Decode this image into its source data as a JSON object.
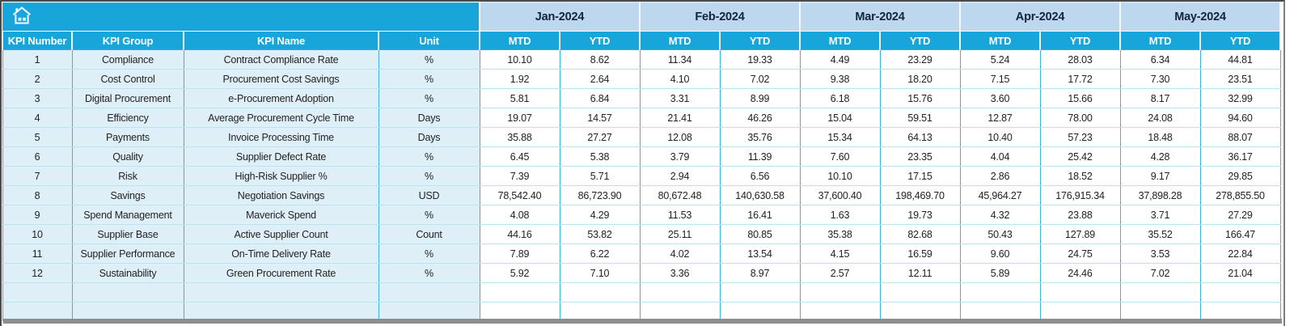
{
  "header": {
    "row_headers": [
      "KPI Number",
      "KPI Group",
      "KPI Name",
      "Unit"
    ],
    "months": [
      "Jan-2024",
      "Feb-2024",
      "Mar-2024",
      "Apr-2024",
      "May-2024"
    ],
    "sub_headers": [
      "MTD",
      "YTD"
    ],
    "home_icon": "home-icon"
  },
  "colors": {
    "header_teal": "#18a6da",
    "month_band_blue": "#bdd7ee",
    "row_tint_blue": "#dfeff8",
    "grid_vertical": "#3ab3d8",
    "grid_horizontal": "#b9e5f3",
    "frame_gray": "#8e8e8e"
  },
  "rows": [
    {
      "number": "1",
      "group": "Compliance",
      "name": "Contract Compliance Rate",
      "unit": "%",
      "values": [
        "10.10",
        "8.62",
        "11.34",
        "19.33",
        "4.49",
        "23.29",
        "5.24",
        "28.03",
        "6.34",
        "44.81"
      ]
    },
    {
      "number": "2",
      "group": "Cost Control",
      "name": "Procurement Cost Savings",
      "unit": "%",
      "values": [
        "1.92",
        "2.64",
        "4.10",
        "7.02",
        "9.38",
        "18.20",
        "7.15",
        "17.72",
        "7.30",
        "23.51"
      ]
    },
    {
      "number": "3",
      "group": "Digital Procurement",
      "name": "e-Procurement Adoption",
      "unit": "%",
      "values": [
        "5.81",
        "6.84",
        "3.31",
        "8.99",
        "6.18",
        "15.76",
        "3.60",
        "15.66",
        "8.17",
        "32.99"
      ]
    },
    {
      "number": "4",
      "group": "Efficiency",
      "name": "Average Procurement Cycle Time",
      "unit": "Days",
      "values": [
        "19.07",
        "14.57",
        "21.41",
        "46.26",
        "15.04",
        "59.51",
        "12.87",
        "78.00",
        "24.08",
        "94.60"
      ]
    },
    {
      "number": "5",
      "group": "Payments",
      "name": "Invoice Processing Time",
      "unit": "Days",
      "values": [
        "35.88",
        "27.27",
        "12.08",
        "35.76",
        "15.34",
        "64.13",
        "10.40",
        "57.23",
        "18.48",
        "88.07"
      ]
    },
    {
      "number": "6",
      "group": "Quality",
      "name": "Supplier Defect Rate",
      "unit": "%",
      "values": [
        "6.45",
        "5.38",
        "3.79",
        "11.39",
        "7.60",
        "23.35",
        "4.04",
        "25.42",
        "4.28",
        "36.17"
      ]
    },
    {
      "number": "7",
      "group": "Risk",
      "name": "High-Risk Supplier %",
      "unit": "%",
      "values": [
        "7.39",
        "5.71",
        "2.94",
        "6.56",
        "10.10",
        "17.15",
        "2.86",
        "18.52",
        "9.17",
        "29.85"
      ]
    },
    {
      "number": "8",
      "group": "Savings",
      "name": "Negotiation Savings",
      "unit": "USD",
      "values": [
        "78,542.40",
        "86,723.90",
        "80,672.48",
        "140,630.58",
        "37,600.40",
        "198,469.70",
        "45,964.27",
        "176,915.34",
        "37,898.28",
        "278,855.50"
      ]
    },
    {
      "number": "9",
      "group": "Spend Management",
      "name": "Maverick Spend",
      "unit": "%",
      "values": [
        "4.08",
        "4.29",
        "11.53",
        "16.41",
        "1.63",
        "19.73",
        "4.32",
        "23.88",
        "3.71",
        "27.29"
      ]
    },
    {
      "number": "10",
      "group": "Supplier Base",
      "name": "Active Supplier Count",
      "unit": "Count",
      "values": [
        "44.16",
        "53.82",
        "25.11",
        "80.85",
        "35.38",
        "82.68",
        "50.43",
        "127.89",
        "35.52",
        "166.47"
      ]
    },
    {
      "number": "11",
      "group": "Supplier Performance",
      "name": "On-Time Delivery Rate",
      "unit": "%",
      "values": [
        "7.89",
        "6.22",
        "4.02",
        "13.54",
        "4.15",
        "16.59",
        "9.60",
        "24.75",
        "3.53",
        "22.84"
      ]
    },
    {
      "number": "12",
      "group": "Sustainability",
      "name": "Green Procurement Rate",
      "unit": "%",
      "values": [
        "5.92",
        "7.10",
        "3.36",
        "8.97",
        "2.57",
        "12.11",
        "5.89",
        "24.46",
        "7.02",
        "21.04"
      ]
    }
  ],
  "empty_rows": 2
}
